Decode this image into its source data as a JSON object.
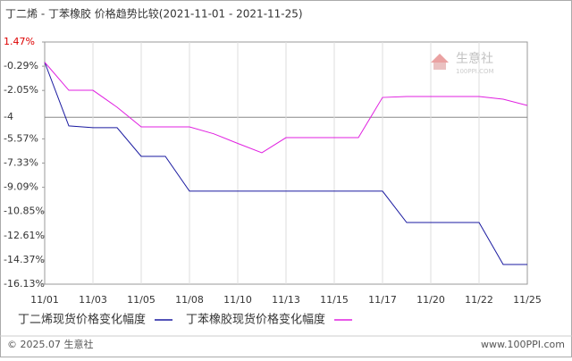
{
  "chart_data": {
    "type": "line",
    "title": "丁二烯 - 丁苯橡胶 价格趋势比较(2021-11-01 - 2021-11-25)",
    "categories": [
      "11/01",
      null,
      "11/03",
      null,
      "11/05",
      null,
      "11/08",
      null,
      "11/10",
      null,
      "11/13",
      null,
      "11/15",
      null,
      "11/17",
      null,
      "11/20",
      null,
      "11/22",
      null,
      "11/25"
    ],
    "series": [
      {
        "name": "丁二烯现货价格变化幅度",
        "color": "#1a1aa0",
        "values": [
          0,
          -4.63,
          -4.76,
          -4.76,
          -6.84,
          -6.84,
          -9.37,
          -9.37,
          -9.37,
          -9.37,
          -9.37,
          -9.37,
          -9.37,
          -9.37,
          -9.37,
          -11.65,
          -11.65,
          -11.65,
          -11.65,
          -14.7,
          -14.7
        ]
      },
      {
        "name": "丁苯橡胶现货价格变化幅度",
        "color": "#e020e0",
        "values": [
          0,
          -2.04,
          -2.04,
          -3.27,
          -4.7,
          -4.7,
          -4.7,
          -5.2,
          -5.9,
          -6.58,
          -5.48,
          -5.48,
          -5.48,
          -5.48,
          -2.56,
          -2.49,
          -2.49,
          -2.49,
          -2.49,
          -2.69,
          -3.14
        ]
      }
    ],
    "ylim": [
      -16.13,
      1.47
    ],
    "yticks": [
      {
        "value": 1.47,
        "label": "1.47%"
      },
      {
        "value": -0.29,
        "label": "-0.29%"
      },
      {
        "value": -2.05,
        "label": "-2.05%"
      },
      -4,
      {
        "value": -5.57,
        "label": "-5.57%"
      },
      {
        "value": -7.33,
        "label": "-7.33%"
      },
      {
        "value": -9.09,
        "label": "-9.09%"
      },
      {
        "value": -10.85,
        "label": "-10.85%"
      },
      {
        "value": -12.61,
        "label": "-12.61%"
      },
      {
        "value": -14.37,
        "label": "-14.37%"
      },
      {
        "value": -16.13,
        "label": "-16.13%"
      }
    ],
    "grid": true,
    "footer": {
      "copyright": "© 2025.07 生意社",
      "site": "www.100PPI.com"
    },
    "logo": {
      "name": "生意社",
      "url": "100PPI.COM"
    }
  }
}
